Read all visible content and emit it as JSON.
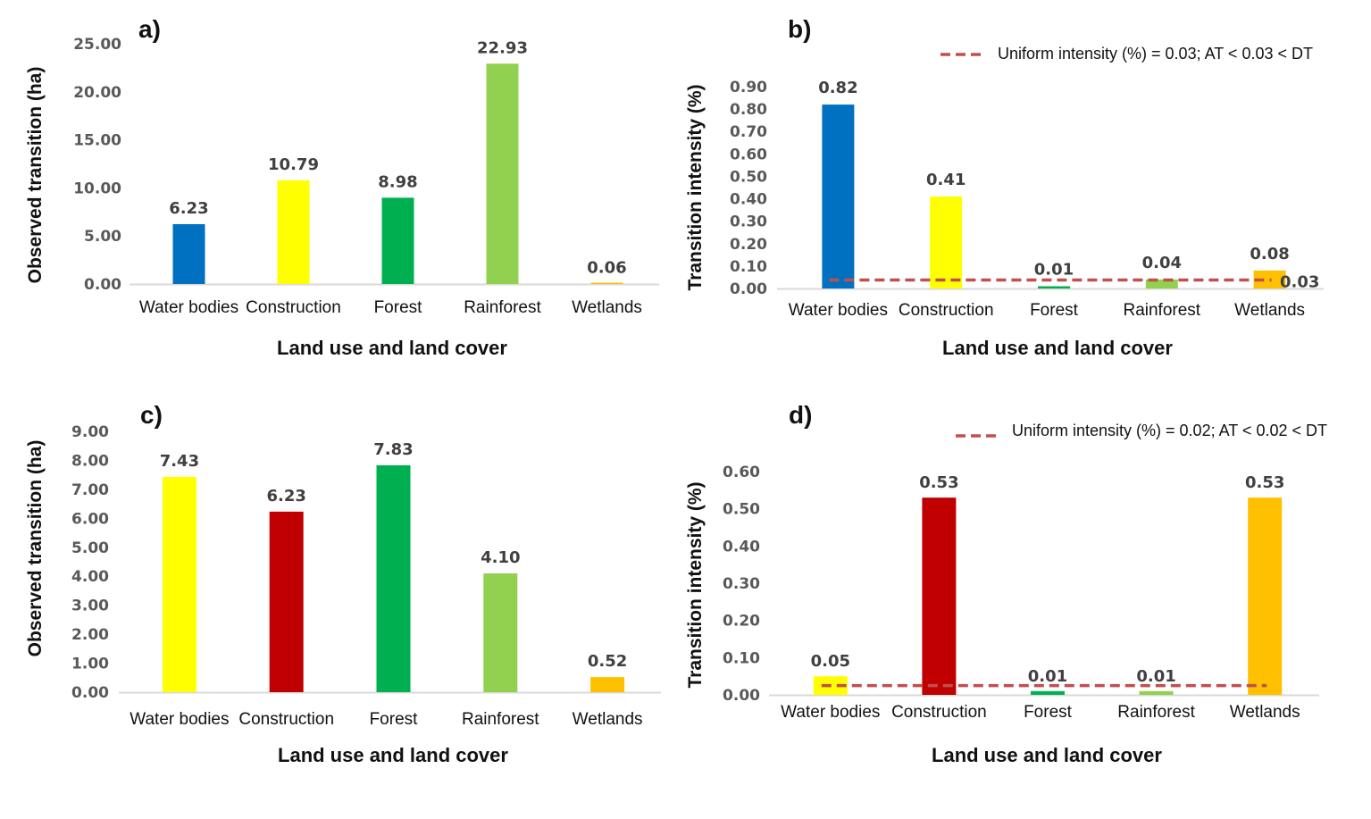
{
  "chart_data": [
    {
      "panel_label": "a)",
      "type": "bar",
      "categories": [
        "Water bodies",
        "Construction",
        "Forest",
        "Rainforest",
        "Wetlands"
      ],
      "values": [
        6.23,
        10.79,
        8.98,
        22.93,
        0.06
      ],
      "value_labels": [
        "6.23",
        "10.79",
        "8.98",
        "22.93",
        "0.06"
      ],
      "colors": [
        "#0070c0",
        "#ffff00",
        "#00b050",
        "#92d050",
        "#ffc000"
      ],
      "xlabel": "Land use and land cover",
      "ylabel": "Observed transition (ha)",
      "ylim": [
        0,
        25
      ],
      "yticks": [
        "0.00",
        "5.00",
        "10.00",
        "15.00",
        "20.00",
        "25.00"
      ]
    },
    {
      "panel_label": "b)",
      "type": "bar",
      "categories": [
        "Water bodies",
        "Construction",
        "Forest",
        "Rainforest",
        "Wetlands"
      ],
      "values": [
        0.82,
        0.41,
        0.01,
        0.04,
        0.08
      ],
      "value_labels": [
        "0.82",
        "0.41",
        "0.01",
        "0.04",
        "0.08"
      ],
      "colors": [
        "#0070c0",
        "#ffff00",
        "#00b050",
        "#92d050",
        "#ffc000"
      ],
      "xlabel": "Land use and land cover",
      "ylabel": "Transition intensity (%)",
      "ylim": [
        0,
        0.9
      ],
      "yticks": [
        "0.00",
        "0.10",
        "0.20",
        "0.30",
        "0.40",
        "0.50",
        "0.60",
        "0.70",
        "0.80",
        "0.90"
      ],
      "uniform_line": {
        "value": 0.03,
        "label": "0.03",
        "color": "#c0504d"
      },
      "legend": "Uniform intensity (%) = 0.03; AT < 0.03 < DT"
    },
    {
      "panel_label": "c)",
      "type": "bar",
      "categories": [
        "Water bodies",
        "Construction",
        "Forest",
        "Rainforest",
        "Wetlands"
      ],
      "values": [
        7.43,
        6.23,
        7.83,
        4.1,
        0.52
      ],
      "value_labels": [
        "7.43",
        "6.23",
        "7.83",
        "4.10",
        "0.52"
      ],
      "colors": [
        "#ffff00",
        "#c00000",
        "#00b050",
        "#92d050",
        "#ffc000"
      ],
      "xlabel": "Land use and land cover",
      "ylabel": "Observed transition (ha)",
      "ylim": [
        0,
        9
      ],
      "yticks": [
        "0.00",
        "1.00",
        "2.00",
        "3.00",
        "4.00",
        "5.00",
        "6.00",
        "7.00",
        "8.00",
        "9.00"
      ]
    },
    {
      "panel_label": "d)",
      "type": "bar",
      "categories": [
        "Water bodies",
        "Construction",
        "Forest",
        "Rainforest",
        "Wetlands"
      ],
      "values": [
        0.05,
        0.53,
        0.01,
        0.01,
        0.53
      ],
      "value_labels": [
        "0.05",
        "0.53",
        "0.01",
        "0.01",
        "0.53"
      ],
      "colors": [
        "#ffff00",
        "#c00000",
        "#00b050",
        "#92d050",
        "#ffc000"
      ],
      "xlabel": "Land use and land cover",
      "ylabel": "Transition intensity (%)",
      "ylim": [
        0,
        0.6
      ],
      "yticks": [
        "0.00",
        "0.10",
        "0.20",
        "0.30",
        "0.40",
        "0.50",
        "0.60"
      ],
      "uniform_line": {
        "value": 0.02,
        "color": "#c0504d"
      },
      "legend": "Uniform intensity (%) = 0.02; AT < 0.02 < DT"
    }
  ]
}
